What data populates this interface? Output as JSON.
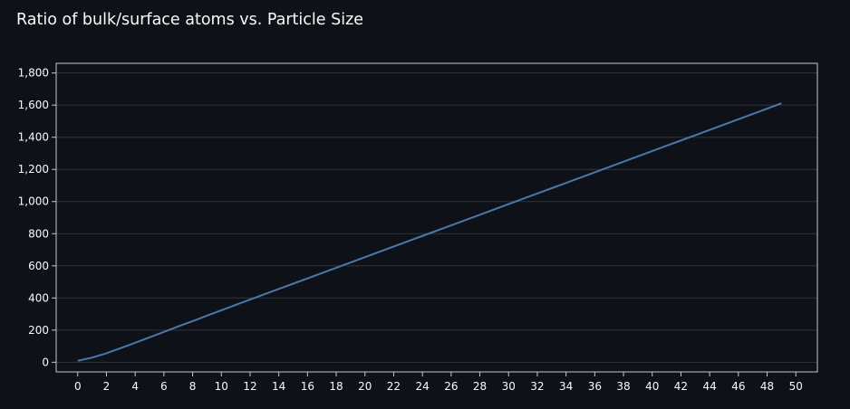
{
  "chart_data": {
    "type": "line",
    "title": "Ratio of bulk/surface atoms vs. Particle Size",
    "xlabel": "",
    "ylabel": "",
    "xlim": [
      -1.5,
      51.5
    ],
    "ylim": [
      -60,
      1860
    ],
    "x_ticks": [
      0,
      2,
      4,
      6,
      8,
      10,
      12,
      14,
      16,
      18,
      20,
      22,
      24,
      26,
      28,
      30,
      32,
      34,
      36,
      38,
      40,
      42,
      44,
      46,
      48,
      50
    ],
    "y_ticks": [
      0,
      200,
      400,
      600,
      800,
      1000,
      1200,
      1400,
      1600,
      1800
    ],
    "y_tick_labels": [
      "0",
      "200",
      "400",
      "600",
      "800",
      "1,000",
      "1,200",
      "1,400",
      "1,600",
      "1,800"
    ],
    "grid": true,
    "colors": {
      "background": "#0e1117",
      "line": "#4c78a8",
      "grid": "#31343b",
      "axis": "#c8c8c8",
      "text": "#fafafa"
    },
    "series": [
      {
        "x": [
          0,
          1,
          2,
          3,
          4,
          5,
          6,
          7,
          8,
          9,
          10,
          11,
          12,
          13,
          14,
          15,
          16,
          17,
          18,
          19,
          20,
          21,
          22,
          23,
          24,
          25,
          26,
          27,
          28,
          29,
          30,
          31,
          32,
          33,
          34,
          35,
          36,
          37,
          38,
          39,
          40,
          41,
          42,
          43,
          44,
          45,
          46,
          47,
          48,
          49
        ],
        "values": [
          9,
          29,
          56,
          88,
          121,
          155,
          189,
          223,
          256,
          290,
          323,
          357,
          390,
          423,
          456,
          489,
          522,
          555,
          588,
          621,
          654,
          687,
          720,
          753,
          786,
          819,
          852,
          885,
          918,
          951,
          984,
          1017,
          1050,
          1083,
          1116,
          1149,
          1182,
          1215,
          1248,
          1281,
          1314,
          1347,
          1380,
          1413,
          1446,
          1479,
          1512,
          1545,
          1578,
          1611
        ]
      }
    ]
  }
}
